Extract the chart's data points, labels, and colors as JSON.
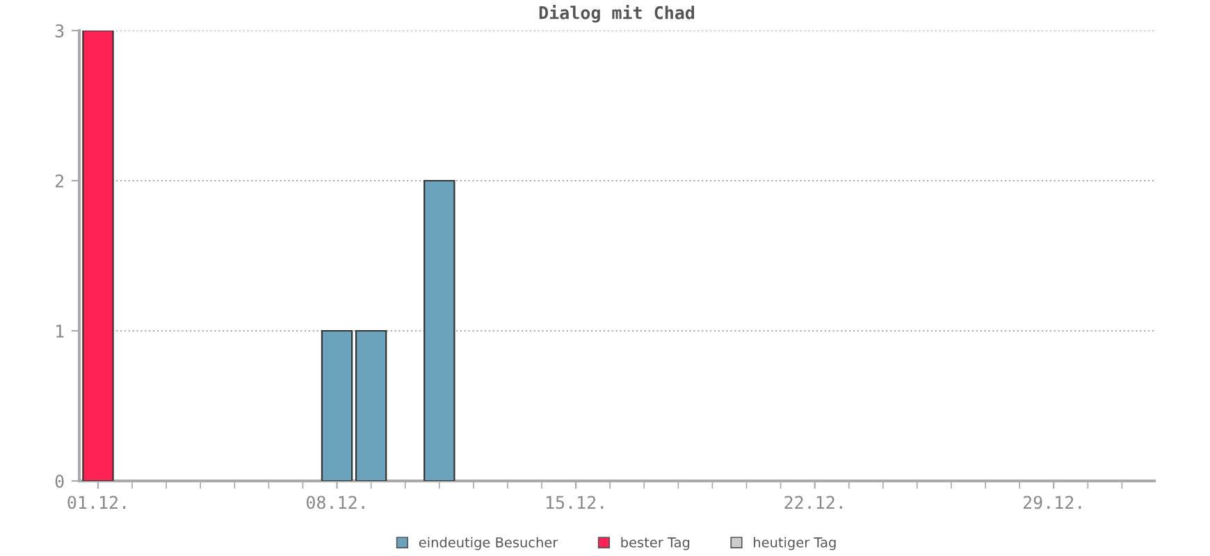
{
  "chart_data": {
    "type": "bar",
    "title": "Dialog mit Chad",
    "categories": [
      "01.12.",
      null,
      null,
      null,
      null,
      null,
      null,
      "08.12.",
      null,
      null,
      null,
      null,
      null,
      null,
      "15.12.",
      null,
      null,
      null,
      null,
      null,
      null,
      "22.12.",
      null,
      null,
      null,
      null,
      null,
      null,
      "29.12.",
      null,
      null
    ],
    "series": [
      {
        "name": "eindeutige Besucher",
        "color": "#6aa3bb",
        "values": [
          null,
          0,
          0,
          0,
          0,
          0,
          0,
          1,
          1,
          0,
          2,
          0,
          0,
          0,
          0,
          0,
          0,
          0,
          0,
          0,
          0,
          0,
          0,
          0,
          0,
          0,
          0,
          0,
          0,
          0,
          0
        ]
      },
      {
        "name": "bester Tag",
        "color": "#ff2255",
        "values": [
          3,
          null,
          null,
          null,
          null,
          null,
          null,
          null,
          null,
          null,
          null,
          null,
          null,
          null,
          null,
          null,
          null,
          null,
          null,
          null,
          null,
          null,
          null,
          null,
          null,
          null,
          null,
          null,
          null,
          null,
          null
        ]
      },
      {
        "name": "heutiger Tag",
        "color": "#cccccc",
        "values": [
          null,
          null,
          null,
          null,
          null,
          null,
          null,
          null,
          null,
          null,
          null,
          null,
          null,
          null,
          null,
          null,
          null,
          null,
          null,
          null,
          null,
          null,
          null,
          null,
          null,
          null,
          null,
          null,
          null,
          null,
          null
        ]
      }
    ],
    "ylim": [
      0,
      3
    ],
    "yticks": [
      0,
      1,
      2,
      3
    ],
    "grid": "y",
    "legend": "bottom"
  }
}
